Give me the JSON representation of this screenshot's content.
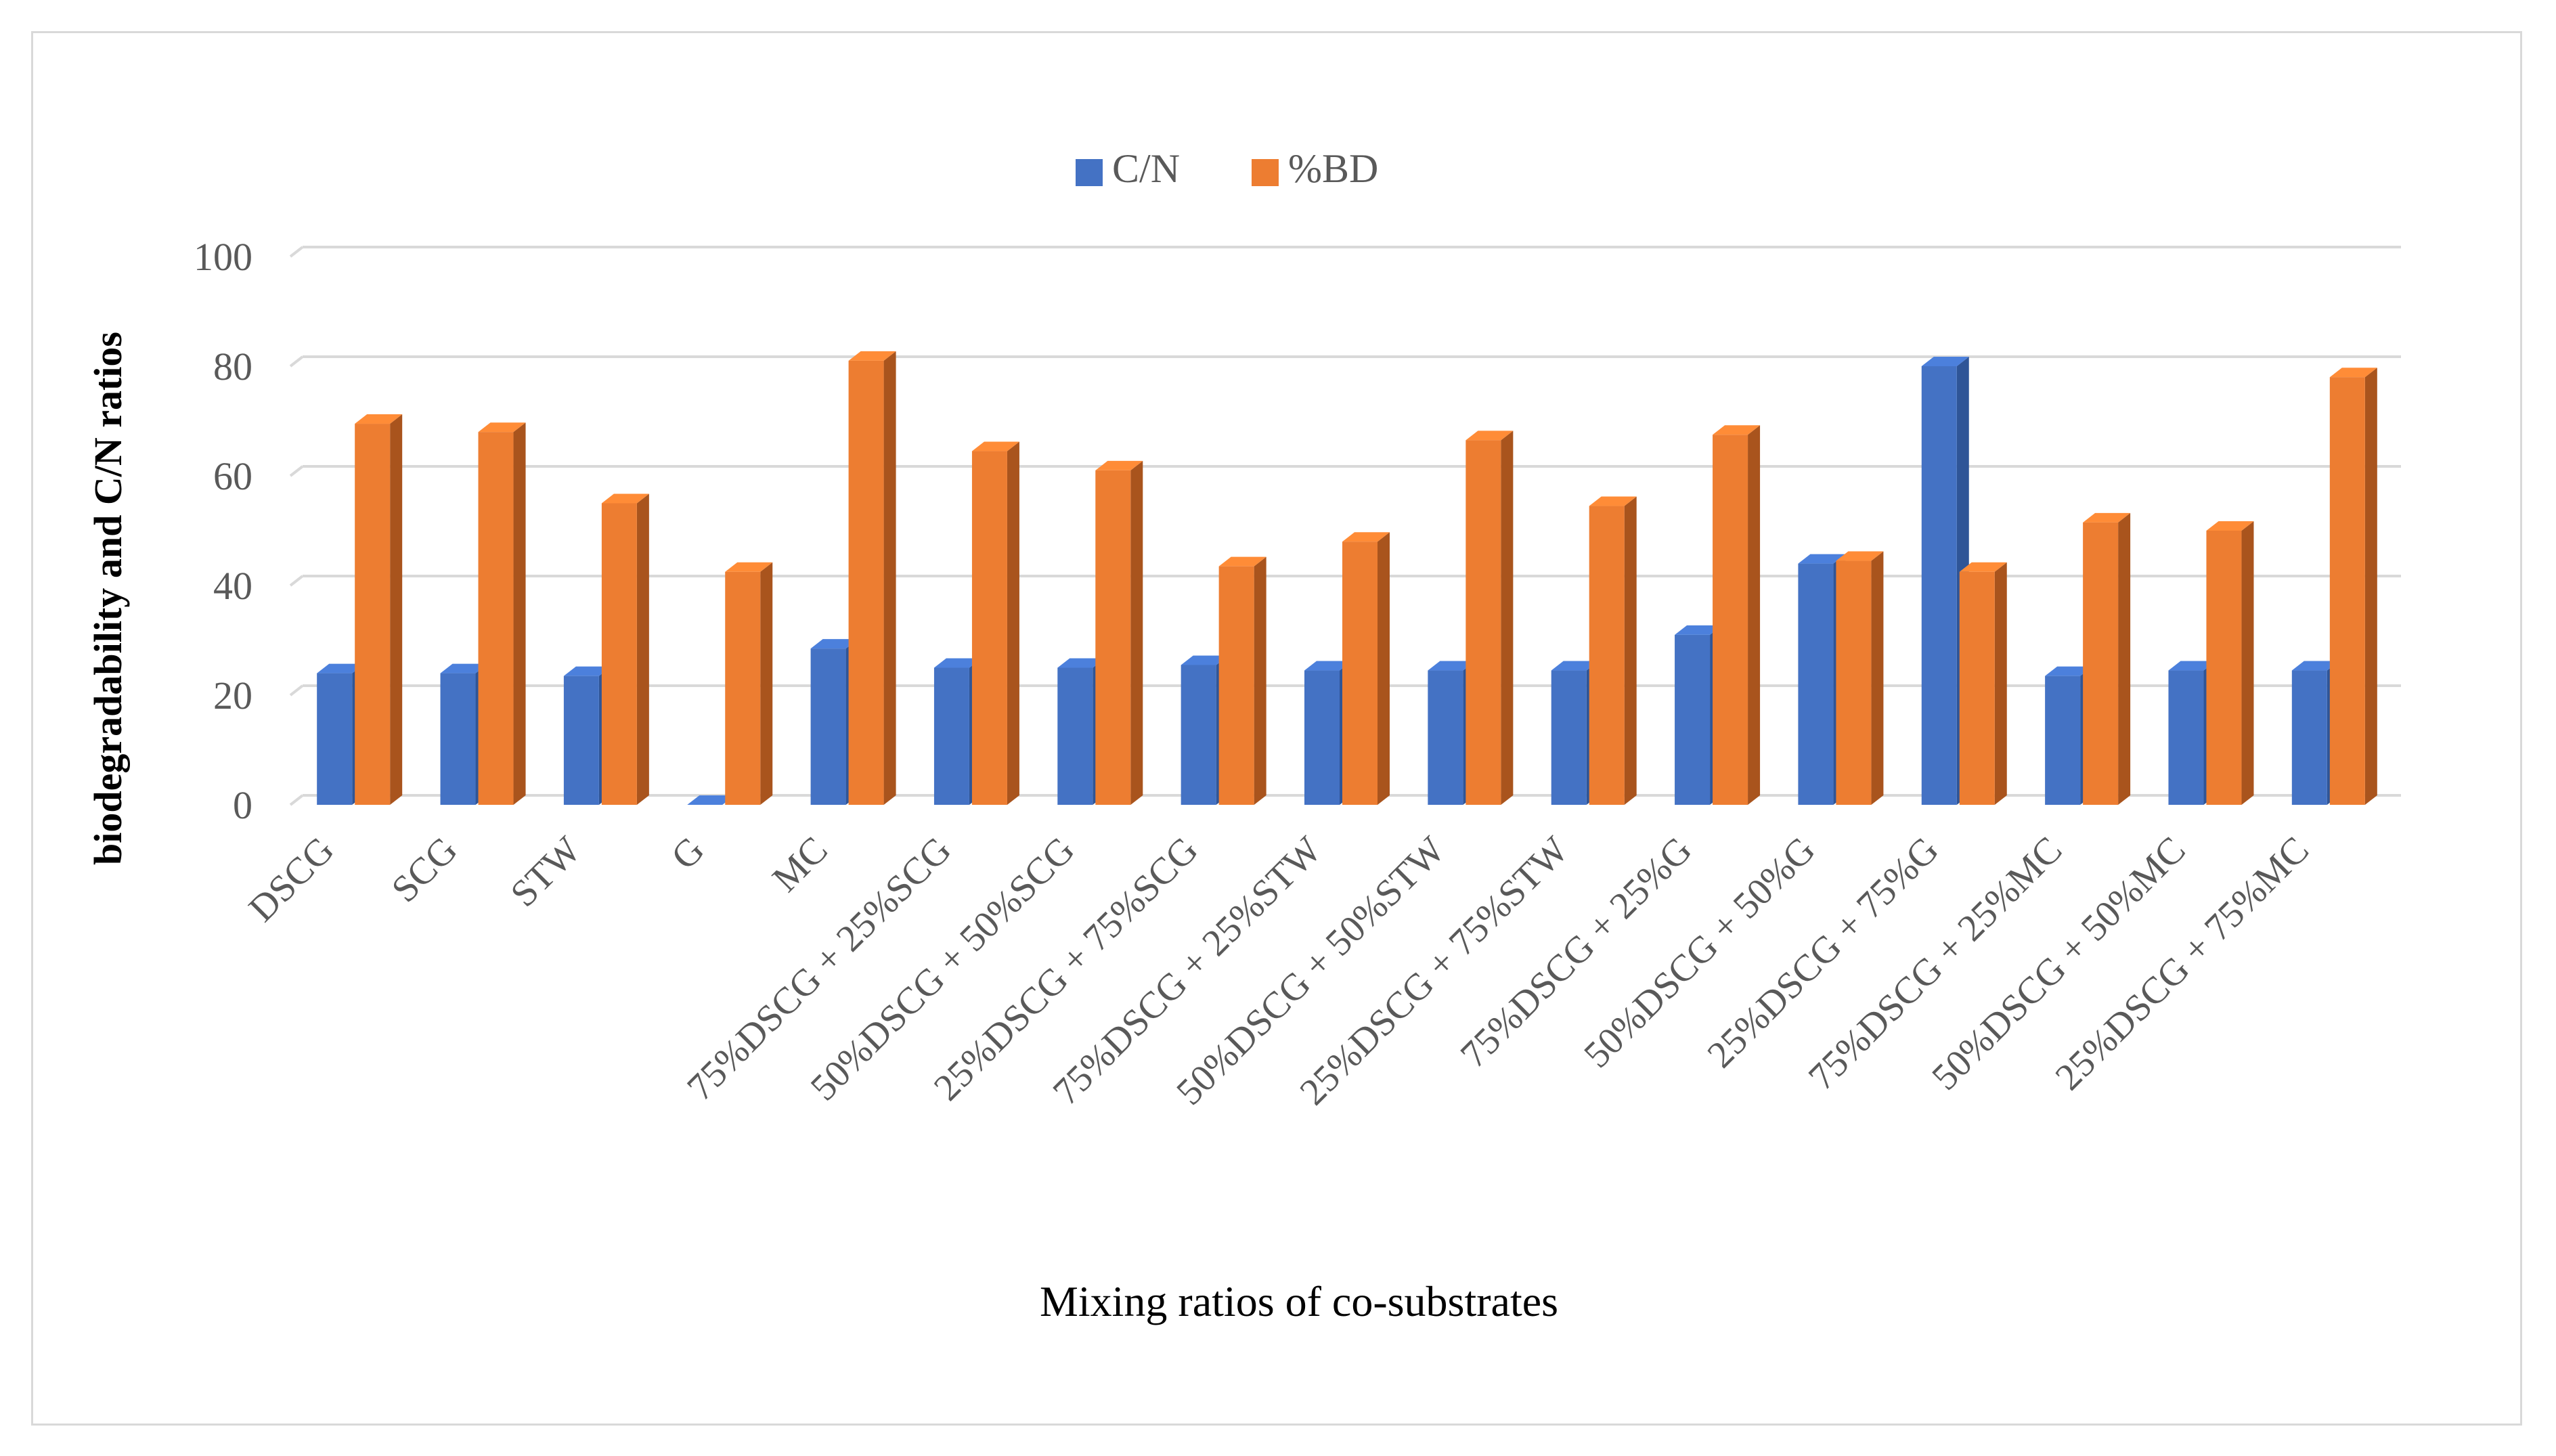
{
  "chart_data": {
    "type": "bar",
    "style": "3d-clustered-column",
    "title": "",
    "xlabel": "Mixing ratios of co-substrates",
    "ylabel": "biodegradability and C/N ratios",
    "ylim": [
      0,
      100
    ],
    "yticks": [
      0,
      20,
      40,
      60,
      80,
      100
    ],
    "grid": true,
    "legend_position": "top-center",
    "categories": [
      "DSCG",
      "SCG",
      "STW",
      "G",
      "MC",
      "75%DSCG + 25%SCG",
      "50%DSCG + 50%SCG",
      "25%DSCG + 75%SCG",
      "75%DSCG + 25%STW",
      "50%DSCG + 50%STW",
      "25%DSCG + 75%STW",
      "75%DSCG + 25%G",
      "50%DSCG + 50%G",
      "25%DSCG + 75%G",
      "75%DSCG + 25%MC",
      "50%DSCG + 50%MC",
      "25%DSCG + 75%MC"
    ],
    "series": [
      {
        "name": "C/N",
        "color": "#4472C4",
        "side_color": "#2F5597",
        "values": [
          24,
          24,
          23.5,
          0,
          28.5,
          25,
          25,
          25.5,
          24.5,
          24.5,
          24.5,
          31,
          44,
          80,
          23.5,
          24.5,
          24.5
        ]
      },
      {
        "name": "%BD",
        "color": "#ED7D31",
        "side_color": "#A9541D",
        "values": [
          69.5,
          68,
          55,
          42.5,
          81,
          64.5,
          61,
          43.5,
          48,
          66.5,
          54.5,
          67.5,
          44.5,
          42.5,
          51.5,
          50,
          78
        ]
      }
    ]
  }
}
